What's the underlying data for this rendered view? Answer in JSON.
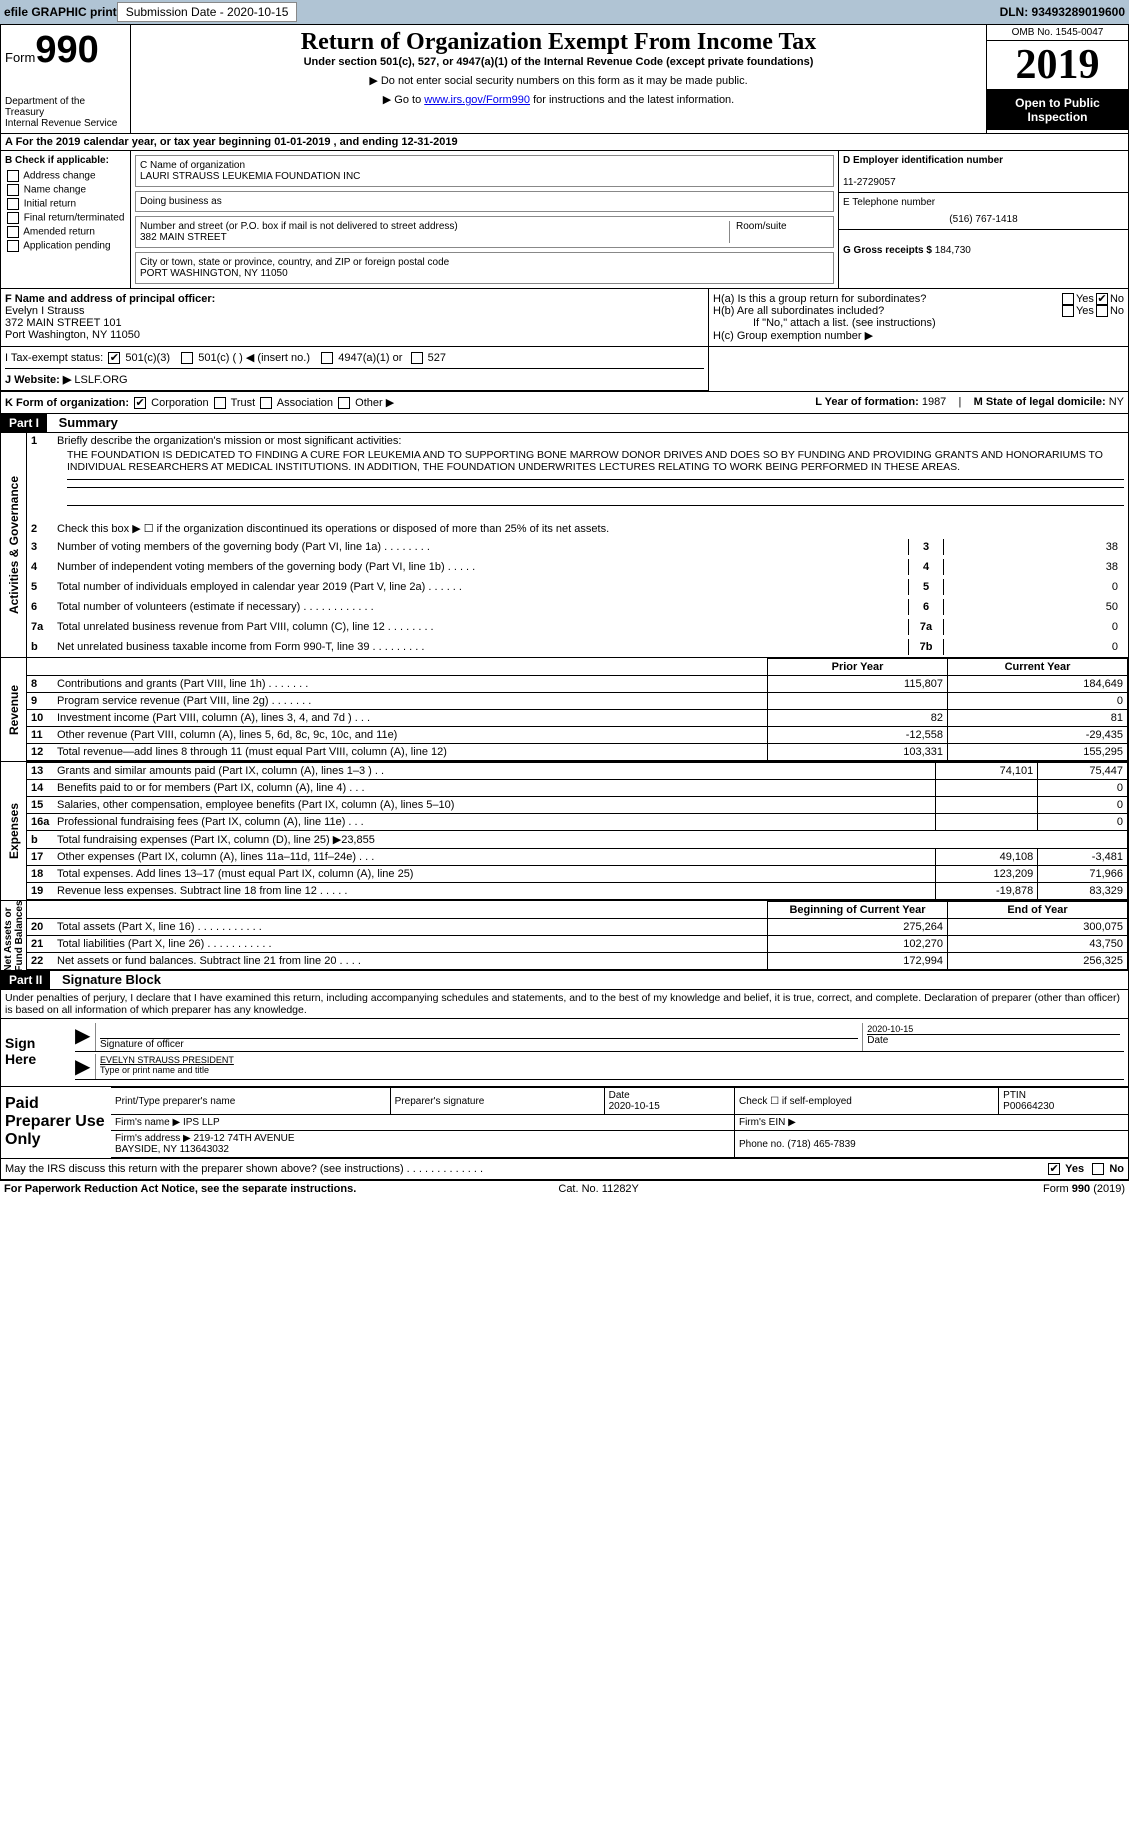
{
  "topbar": {
    "efile": "efile GRAPHIC print",
    "submission": "Submission Date - 2020-10-15",
    "dln": "DLN: 93493289019600"
  },
  "hdr": {
    "form_prefix": "Form",
    "form_no": "990",
    "dept": "Department of the Treasury\nInternal Revenue Service",
    "title": "Return of Organization Exempt From Income Tax",
    "sub": "Under section 501(c), 527, or 4947(a)(1) of the Internal Revenue Code (except private foundations)",
    "note1": "▶ Do not enter social security numbers on this form as it may be made public.",
    "note2_pre": "▶ Go to ",
    "note2_link": "www.irs.gov/Form990",
    "note2_post": " for instructions and the latest information.",
    "omb": "OMB No. 1545-0047",
    "year": "2019",
    "insp": "Open to Public Inspection"
  },
  "rowA": {
    "text": "A  For the 2019 calendar year, or tax year beginning 01-01-2019    , and ending 12-31-2019"
  },
  "B": {
    "hdr": "B Check if applicable:",
    "items": [
      "Address change",
      "Name change",
      "Initial return",
      "Final return/terminated",
      "Amended return",
      "Application pending"
    ]
  },
  "C": {
    "lbl": "C Name of organization",
    "name": "LAURI STRAUSS LEUKEMIA FOUNDATION INC",
    "dba": "Doing business as",
    "addr_lbl": "Number and street (or P.O. box if mail is not delivered to street address)",
    "addr": "382 MAIN STREET",
    "room": "Room/suite",
    "city_lbl": "City or town, state or province, country, and ZIP or foreign postal code",
    "city": "PORT WASHINGTON, NY  11050"
  },
  "D": {
    "lbl": "D Employer identification number",
    "val": "11-2729057"
  },
  "E": {
    "lbl": "E Telephone number",
    "val": "(516) 767-1418"
  },
  "G": {
    "lbl": "G Gross receipts $",
    "val": "184,730"
  },
  "F": {
    "lbl": "F  Name and address of principal officer:",
    "name": "Evelyn I Strauss",
    "l1": "372 MAIN STREET 101",
    "l2": "Port Washington, NY  11050"
  },
  "H": {
    "a": "H(a)  Is this a group return for subordinates?",
    "b": "H(b)  Are all subordinates included?",
    "note": "If \"No,\" attach a list. (see instructions)",
    "c": "H(c)  Group exemption number ▶"
  },
  "I": {
    "lbl": "I    Tax-exempt status:",
    "o1": "501(c)(3)",
    "o2": "501(c) (  ) ◀ (insert no.)",
    "o3": "4947(a)(1) or",
    "o4": "527"
  },
  "J": {
    "lbl": "J   Website: ▶",
    "val": "LSLF.ORG"
  },
  "K": {
    "lbl": "K Form of organization:",
    "o1": "Corporation",
    "o2": "Trust",
    "o3": "Association",
    "o4": "Other ▶"
  },
  "L": {
    "lbl": "L Year of formation:",
    "val": "1987"
  },
  "M": {
    "lbl": "M State of legal domicile:",
    "val": "NY"
  },
  "part1": {
    "part": "Part I",
    "title": "Summary"
  },
  "mission": {
    "lbl": "Briefly describe the organization's mission or most significant activities:",
    "text": "THE FOUNDATION IS DEDICATED TO FINDING A CURE FOR LEUKEMIA AND TO SUPPORTING BONE MARROW DONOR DRIVES AND DOES SO BY FUNDING AND PROVIDING GRANTS AND HONORARIUMS TO INDIVIDUAL RESEARCHERS AT MEDICAL INSTITUTIONS. IN ADDITION, THE FOUNDATION UNDERWRITES LECTURES RELATING TO WORK BEING PERFORMED IN THESE AREAS."
  },
  "gov_lines": [
    {
      "n": "2",
      "t": "Check this box ▶ ☐  if the organization discontinued its operations or disposed of more than 25% of its net assets."
    },
    {
      "n": "3",
      "t": "Number of voting members of the governing body (Part VI, line 1a)   .    .    .    .    .    .    .    .",
      "nc": "3",
      "v": "38"
    },
    {
      "n": "4",
      "t": "Number of independent voting members of the governing body (Part VI, line 1b)   .    .    .    .    .",
      "nc": "4",
      "v": "38"
    },
    {
      "n": "5",
      "t": "Total number of individuals employed in calendar year 2019 (Part V, line 2a)   .    .    .    .    .    .",
      "nc": "5",
      "v": "0"
    },
    {
      "n": "6",
      "t": "Total number of volunteers (estimate if necessary)    .    .    .    .    .    .    .    .    .    .    .    .",
      "nc": "6",
      "v": "50"
    },
    {
      "n": "7a",
      "t": "Total unrelated business revenue from Part VIII, column (C), line 12    .    .    .    .    .    .    .    .",
      "nc": "7a",
      "v": "0"
    },
    {
      "n": "b",
      "t": "Net unrelated business taxable income from Form 990-T, line 39    .    .    .    .    .    .    .    .    .",
      "nc": "7b",
      "v": "0"
    }
  ],
  "rev": {
    "h1": "Prior Year",
    "h2": "Current Year",
    "rows": [
      {
        "n": "8",
        "t": "Contributions and grants (Part VIII, line 1h)    .    .    .    .    .    .    .",
        "p": "115,807",
        "c": "184,649"
      },
      {
        "n": "9",
        "t": "Program service revenue (Part VIII, line 2g)    .    .    .    .    .    .    .",
        "p": "",
        "c": "0"
      },
      {
        "n": "10",
        "t": "Investment income (Part VIII, column (A), lines 3, 4, and 7d )    .    .    .",
        "p": "82",
        "c": "81"
      },
      {
        "n": "11",
        "t": "Other revenue (Part VIII, column (A), lines 5, 6d, 8c, 9c, 10c, and 11e)",
        "p": "-12,558",
        "c": "-29,435"
      },
      {
        "n": "12",
        "t": "Total revenue—add lines 8 through 11 (must equal Part VIII, column (A), line 12)",
        "p": "103,331",
        "c": "155,295"
      }
    ]
  },
  "exp": {
    "rows": [
      {
        "n": "13",
        "t": "Grants and similar amounts paid (Part IX, column (A), lines 1–3 )    .    .",
        "p": "74,101",
        "c": "75,447"
      },
      {
        "n": "14",
        "t": "Benefits paid to or for members (Part IX, column (A), line 4)    .    .    .",
        "p": "",
        "c": "0"
      },
      {
        "n": "15",
        "t": "Salaries, other compensation, employee benefits (Part IX, column (A), lines 5–10)",
        "p": "",
        "c": "0"
      },
      {
        "n": "16a",
        "t": "Professional fundraising fees (Part IX, column (A), line 11e)    .    .    .",
        "p": "",
        "c": "0"
      },
      {
        "n": "b",
        "t": "Total fundraising expenses (Part IX, column (D), line 25) ▶23,855",
        "p": "—",
        "c": "—"
      },
      {
        "n": "17",
        "t": "Other expenses (Part IX, column (A), lines 11a–11d, 11f–24e)    .    .    .",
        "p": "49,108",
        "c": "-3,481"
      },
      {
        "n": "18",
        "t": "Total expenses. Add lines 13–17 (must equal Part IX, column (A), line 25)",
        "p": "123,209",
        "c": "71,966"
      },
      {
        "n": "19",
        "t": "Revenue less expenses. Subtract line 18 from line 12    .    .    .    .    .",
        "p": "-19,878",
        "c": "83,329"
      }
    ]
  },
  "na": {
    "h1": "Beginning of Current Year",
    "h2": "End of Year",
    "rows": [
      {
        "n": "20",
        "t": "Total assets (Part X, line 16)    .    .    .    .    .    .    .    .    .    .    .",
        "p": "275,264",
        "c": "300,075"
      },
      {
        "n": "21",
        "t": "Total liabilities (Part X, line 26)    .    .    .    .    .    .    .    .    .    .    .",
        "p": "102,270",
        "c": "43,750"
      },
      {
        "n": "22",
        "t": "Net assets or fund balances. Subtract line 21 from line 20    .    .    .    .",
        "p": "172,994",
        "c": "256,325"
      }
    ]
  },
  "vtabs": {
    "gov": "Activities & Governance",
    "rev": "Revenue",
    "exp": "Expenses",
    "na": "Net Assets or\nFund Balances"
  },
  "part2": {
    "part": "Part II",
    "title": "Signature Block",
    "decl": "Under penalties of perjury, I declare that I have examined this return, including accompanying schedules and statements, and to the best of my knowledge and belief, it is true, correct, and complete. Declaration of preparer (other than officer) is based on all information of which preparer has any knowledge."
  },
  "sign": {
    "hdr": "Sign Here",
    "sig_lbl": "Signature of officer",
    "date_lbl": "Date",
    "date": "2020-10-15",
    "name": "EVELYN STRAUSS PRESIDENT",
    "name_lbl": "Type or print name and title"
  },
  "prep": {
    "hdr": "Paid Preparer Use Only",
    "c1": "Print/Type preparer's name",
    "c2": "Preparer's signature",
    "c3": "Date",
    "c3v": "2020-10-15",
    "c4": "Check ☐ if self-employed",
    "c5": "PTIN",
    "c5v": "P00664230",
    "firm_lbl": "Firm's name    ▶",
    "firm": "IPS LLP",
    "ein_lbl": "Firm's EIN ▶",
    "addr_lbl": "Firm's address ▶",
    "addr": "219-12 74TH AVENUE\nBAYSIDE, NY  113643032",
    "ph_lbl": "Phone no.",
    "ph": "(718) 465-7839"
  },
  "discuss": {
    "t": "May the IRS discuss this return with the preparer shown above? (see instructions)    .    .    .    .    .    .    .    .    .    .    .    .    .",
    "yes": "Yes",
    "no": "No"
  },
  "foot": {
    "l": "For Paperwork Reduction Act Notice, see the separate instructions.",
    "c": "Cat. No. 11282Y",
    "r": "Form 990 (2019)"
  }
}
